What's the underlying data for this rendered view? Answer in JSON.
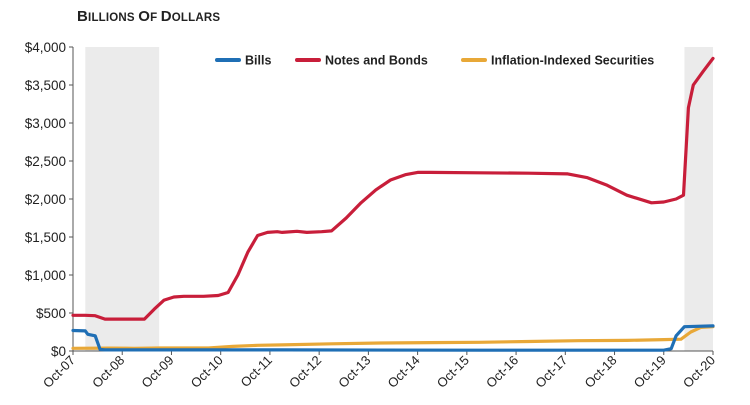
{
  "chart_data": {
    "type": "line",
    "title": "Billions of Dollars",
    "ylabel": "",
    "xlabel": "",
    "ylim": [
      0,
      4000
    ],
    "grid": false,
    "legend_position": "top",
    "yticks": [
      0,
      500,
      1000,
      1500,
      2000,
      2500,
      3000,
      3500,
      4000
    ],
    "ytick_labels": [
      "$0",
      "$500",
      "$1,000",
      "$1,500",
      "$2,000",
      "$2,500",
      "$3,000",
      "$3,500",
      "$4,000"
    ],
    "xticks": [
      2007.75,
      2008.75,
      2009.75,
      2010.75,
      2011.75,
      2012.75,
      2013.75,
      2014.75,
      2015.75,
      2016.75,
      2017.75,
      2018.75,
      2019.75,
      2020.75
    ],
    "xtick_labels": [
      "Oct-07",
      "Oct-08",
      "Oct-09",
      "Oct-10",
      "Oct-11",
      "Oct-12",
      "Oct-13",
      "Oct-14",
      "Oct-15",
      "Oct-16",
      "Oct-17",
      "Oct-18",
      "Oct-19",
      "Oct-20"
    ],
    "xlim": [
      2007.75,
      2020.75
    ],
    "shaded_periods": [
      [
        2008.0,
        2009.5
      ],
      [
        2020.17,
        2020.75
      ]
    ],
    "series": [
      {
        "name": "Bills",
        "color": "#1f6fb5",
        "points": [
          [
            2007.75,
            270
          ],
          [
            2008.0,
            265
          ],
          [
            2008.05,
            220
          ],
          [
            2008.2,
            200
          ],
          [
            2008.3,
            20
          ],
          [
            2008.4,
            15
          ],
          [
            2009.0,
            15
          ],
          [
            2010.0,
            15
          ],
          [
            2012.0,
            15
          ],
          [
            2016.0,
            10
          ],
          [
            2019.75,
            10
          ],
          [
            2019.9,
            30
          ],
          [
            2020.0,
            200
          ],
          [
            2020.17,
            320
          ],
          [
            2020.75,
            330
          ]
        ]
      },
      {
        "name": "Notes and Bonds",
        "color": "#c81e3a",
        "points": [
          [
            2007.75,
            470
          ],
          [
            2008.0,
            470
          ],
          [
            2008.2,
            465
          ],
          [
            2008.4,
            420
          ],
          [
            2008.7,
            420
          ],
          [
            2009.0,
            420
          ],
          [
            2009.2,
            420
          ],
          [
            2009.4,
            550
          ],
          [
            2009.6,
            670
          ],
          [
            2009.8,
            710
          ],
          [
            2010.0,
            720
          ],
          [
            2010.4,
            720
          ],
          [
            2010.7,
            730
          ],
          [
            2010.9,
            770
          ],
          [
            2011.1,
            1000
          ],
          [
            2011.3,
            1300
          ],
          [
            2011.5,
            1520
          ],
          [
            2011.7,
            1560
          ],
          [
            2011.9,
            1570
          ],
          [
            2012.0,
            1560
          ],
          [
            2012.3,
            1575
          ],
          [
            2012.5,
            1560
          ],
          [
            2012.8,
            1570
          ],
          [
            2013.0,
            1580
          ],
          [
            2013.3,
            1750
          ],
          [
            2013.6,
            1950
          ],
          [
            2013.9,
            2120
          ],
          [
            2014.2,
            2250
          ],
          [
            2014.5,
            2320
          ],
          [
            2014.75,
            2350
          ],
          [
            2015.0,
            2350
          ],
          [
            2016.0,
            2345
          ],
          [
            2017.0,
            2340
          ],
          [
            2017.8,
            2330
          ],
          [
            2018.2,
            2280
          ],
          [
            2018.6,
            2180
          ],
          [
            2019.0,
            2050
          ],
          [
            2019.5,
            1950
          ],
          [
            2019.75,
            1960
          ],
          [
            2020.0,
            2000
          ],
          [
            2020.15,
            2050
          ],
          [
            2020.25,
            3200
          ],
          [
            2020.35,
            3500
          ],
          [
            2020.55,
            3680
          ],
          [
            2020.75,
            3850
          ]
        ]
      },
      {
        "name": "Inflation-Indexed Securities",
        "color": "#e8a838",
        "points": [
          [
            2007.75,
            35
          ],
          [
            2008.5,
            38
          ],
          [
            2009.0,
            35
          ],
          [
            2009.5,
            40
          ],
          [
            2010.0,
            40
          ],
          [
            2010.5,
            40
          ],
          [
            2011.0,
            60
          ],
          [
            2011.5,
            75
          ],
          [
            2012.0,
            80
          ],
          [
            2013.0,
            95
          ],
          [
            2014.0,
            105
          ],
          [
            2015.0,
            110
          ],
          [
            2016.0,
            115
          ],
          [
            2017.0,
            125
          ],
          [
            2018.0,
            135
          ],
          [
            2019.0,
            140
          ],
          [
            2019.75,
            150
          ],
          [
            2020.1,
            155
          ],
          [
            2020.3,
            250
          ],
          [
            2020.5,
            310
          ],
          [
            2020.75,
            320
          ]
        ]
      }
    ]
  }
}
